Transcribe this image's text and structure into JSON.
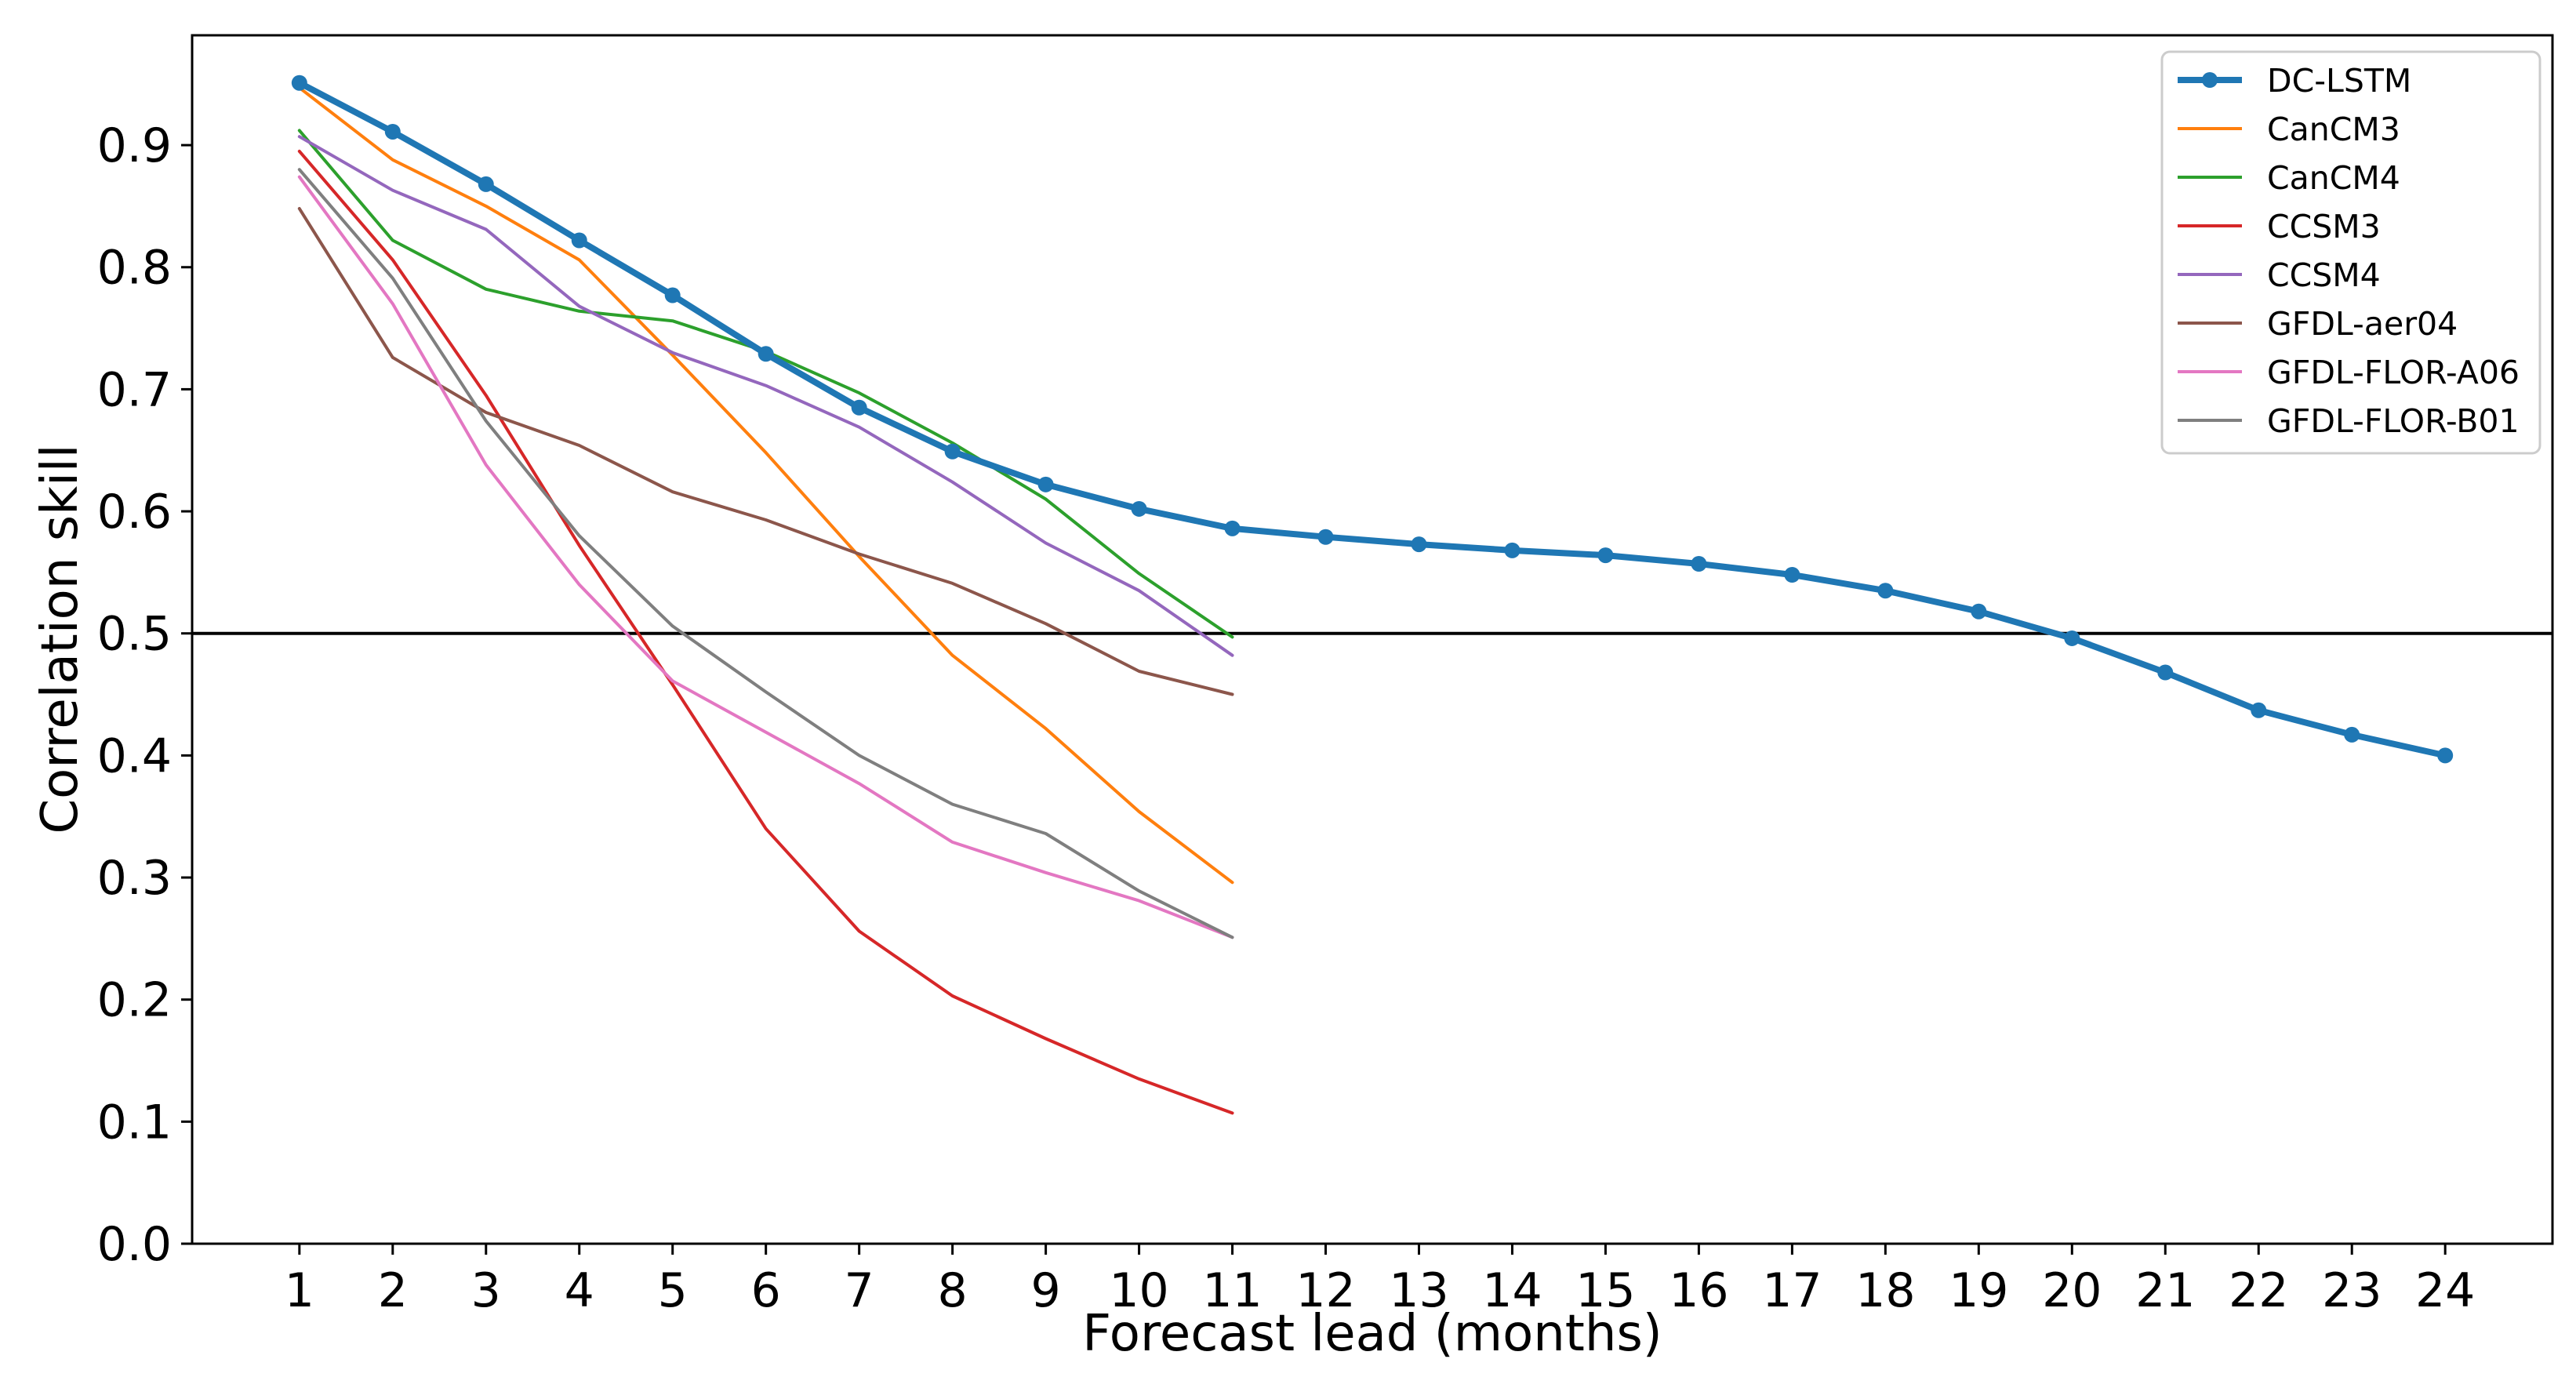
{
  "chart_data": {
    "type": "line",
    "xlabel": "Forecast lead (months)",
    "ylabel": "Correlation skill",
    "xlim": [
      -0.15,
      25.15
    ],
    "ylim": [
      0.0,
      0.99
    ],
    "x_ticks": [
      "1",
      "2",
      "3",
      "4",
      "5",
      "6",
      "7",
      "8",
      "9",
      "10",
      "11",
      "12",
      "13",
      "14",
      "15",
      "16",
      "17",
      "18",
      "19",
      "20",
      "21",
      "22",
      "23",
      "24"
    ],
    "y_ticks": [
      "0.0",
      "0.1",
      "0.2",
      "0.3",
      "0.4",
      "0.5",
      "0.6",
      "0.7",
      "0.8",
      "0.9"
    ],
    "reference_line": {
      "y": 0.5,
      "color": "#000000"
    },
    "grid": false,
    "legend_position": "top-right",
    "series": [
      {
        "name": "DC-LSTM",
        "color": "#1f77b4",
        "markers": true,
        "x": [
          1,
          2,
          3,
          4,
          5,
          6,
          7,
          8,
          9,
          10,
          11,
          12,
          13,
          14,
          15,
          16,
          17,
          18,
          19,
          20,
          21,
          22,
          23,
          24
        ],
        "values": [
          0.951,
          0.911,
          0.868,
          0.822,
          0.777,
          0.729,
          0.685,
          0.649,
          0.622,
          0.602,
          0.586,
          0.579,
          0.573,
          0.568,
          0.564,
          0.557,
          0.548,
          0.535,
          0.518,
          0.496,
          0.468,
          0.437,
          0.417,
          0.4
        ]
      },
      {
        "name": "CanCM3",
        "color": "#ff7f0e",
        "x": [
          1,
          2,
          3,
          4,
          5,
          6,
          7,
          8,
          9,
          10,
          11
        ],
        "values": [
          0.947,
          0.888,
          0.85,
          0.806,
          0.728,
          0.648,
          0.563,
          0.482,
          0.422,
          0.354,
          0.296
        ]
      },
      {
        "name": "CanCM4",
        "color": "#2ca02c",
        "x": [
          1,
          2,
          3,
          4,
          5,
          6,
          7,
          8,
          9,
          10,
          11
        ],
        "values": [
          0.912,
          0.822,
          0.782,
          0.764,
          0.756,
          0.731,
          0.697,
          0.656,
          0.61,
          0.549,
          0.497
        ]
      },
      {
        "name": "CCSM3",
        "color": "#d62728",
        "x": [
          1,
          2,
          3,
          4,
          5,
          6,
          7,
          8,
          9,
          10,
          11
        ],
        "values": [
          0.895,
          0.806,
          0.695,
          0.572,
          0.458,
          0.34,
          0.256,
          0.203,
          0.168,
          0.135,
          0.107
        ]
      },
      {
        "name": "CCSM4",
        "color": "#9467bd",
        "x": [
          1,
          2,
          3,
          4,
          5,
          6,
          7,
          8,
          9,
          10,
          11
        ],
        "values": [
          0.907,
          0.863,
          0.831,
          0.768,
          0.73,
          0.703,
          0.669,
          0.624,
          0.574,
          0.535,
          0.482
        ]
      },
      {
        "name": "GFDL-aer04",
        "color": "#8c564b",
        "x": [
          1,
          2,
          3,
          4,
          5,
          6,
          7,
          8,
          9,
          10,
          11
        ],
        "values": [
          0.848,
          0.726,
          0.681,
          0.654,
          0.616,
          0.593,
          0.565,
          0.541,
          0.508,
          0.469,
          0.45
        ]
      },
      {
        "name": "GFDL-FLOR-A06",
        "color": "#e377c2",
        "x": [
          1,
          2,
          3,
          4,
          5,
          6,
          7,
          8,
          9,
          10,
          11
        ],
        "values": [
          0.874,
          0.77,
          0.638,
          0.54,
          0.461,
          0.419,
          0.377,
          0.329,
          0.304,
          0.281,
          0.251
        ]
      },
      {
        "name": "GFDL-FLOR-B01",
        "color": "#7f7f7f",
        "x": [
          1,
          2,
          3,
          4,
          5,
          6,
          7,
          8,
          9,
          10,
          11
        ],
        "values": [
          0.88,
          0.791,
          0.674,
          0.58,
          0.506,
          0.452,
          0.4,
          0.36,
          0.336,
          0.289,
          0.251
        ]
      }
    ]
  }
}
